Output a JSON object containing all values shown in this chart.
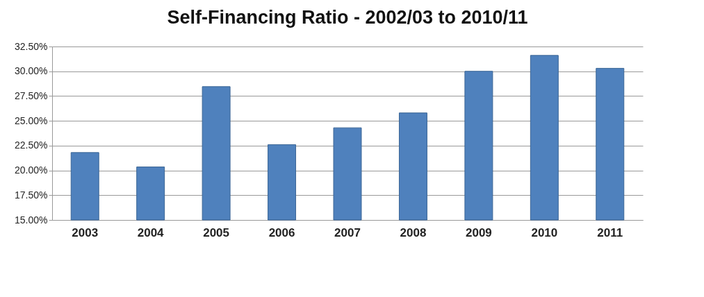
{
  "chart_data": {
    "type": "bar",
    "title": "Self-Financing Ratio - 2002/03 to 2010/11",
    "categories": [
      "2003",
      "2004",
      "2005",
      "2006",
      "2007",
      "2008",
      "2009",
      "2010",
      "2011"
    ],
    "values": [
      21.8,
      20.35,
      28.45,
      22.6,
      24.3,
      25.8,
      30.0,
      31.6,
      30.3
    ],
    "color": "#4f81bd",
    "ylim": [
      15,
      32.5
    ],
    "yticks": [
      {
        "value": 15,
        "label": "15.00%"
      },
      {
        "value": 17.5,
        "label": "17.50%"
      },
      {
        "value": 20,
        "label": "20.00%"
      },
      {
        "value": 22.5,
        "label": "22.50%"
      },
      {
        "value": 25,
        "label": "25.00%"
      },
      {
        "value": 27.5,
        "label": "27.50%"
      },
      {
        "value": 30,
        "label": "30.00%"
      },
      {
        "value": 32.5,
        "label": "32.50%"
      }
    ],
    "grid": "y"
  }
}
